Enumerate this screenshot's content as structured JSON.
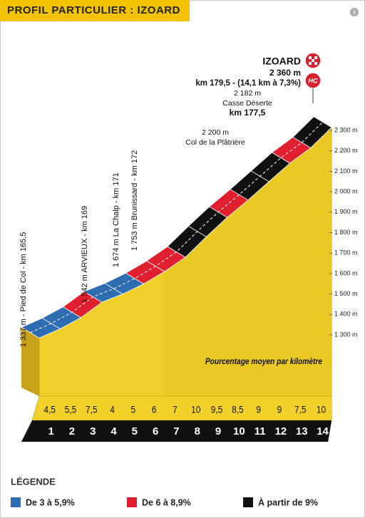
{
  "chart_data": {
    "type": "climb-profile",
    "title": "PROFIL PARTICULIER : IZOARD",
    "summit": {
      "name": "IZOARD",
      "altitude": "2 360 m",
      "detail": "km 179,5 - (14,1 km à 7,3%)",
      "category": "HC"
    },
    "annotations": [
      {
        "lines": [
          "1 337 m - Pied de Col - km 165,5"
        ]
      },
      {
        "lines": [
          "1 542 m ARVIEUX - km 169"
        ]
      },
      {
        "lines": [
          "1 674 m La Chalp - km 171"
        ]
      },
      {
        "lines": [
          "1 753 m Brunissard - km 172"
        ]
      },
      {
        "lines": [
          "2 200 m",
          "Col de la Plâtrière"
        ]
      },
      {
        "lines": [
          "2 182 m",
          "Casse Déserte",
          "km 177,5"
        ]
      }
    ],
    "start_altitude": 1337,
    "values_label": "Pourcentage moyen par kilomètre",
    "categories": [
      "1",
      "2",
      "3",
      "4",
      "5",
      "6",
      "7",
      "8",
      "9",
      "10",
      "11",
      "12",
      "13",
      "14"
    ],
    "values": [
      4.5,
      5.5,
      7.5,
      4,
      5,
      6,
      7,
      10,
      9.5,
      8.5,
      9,
      9,
      7.5,
      10
    ],
    "value_labels": [
      "4,5",
      "5,5",
      "7,5",
      "4",
      "5",
      "6",
      "7",
      "10",
      "9,5",
      "8,5",
      "9",
      "9",
      "7,5",
      "10"
    ],
    "ylim": [
      1300,
      2300
    ],
    "yticks": [
      {
        "value": 1300,
        "label": "1 300 m"
      },
      {
        "value": 1400,
        "label": "1 400 m"
      },
      {
        "value": 1500,
        "label": "1 500 m"
      },
      {
        "value": 1600,
        "label": "1 600 m"
      },
      {
        "value": 1700,
        "label": "1 700 m"
      },
      {
        "value": 1800,
        "label": "1 800 m"
      },
      {
        "value": 1900,
        "label": "1 900 m"
      },
      {
        "value": 2000,
        "label": "2 000 m"
      },
      {
        "value": 2100,
        "label": "2 100 m"
      },
      {
        "value": 2200,
        "label": "2 200 m"
      },
      {
        "value": 2300,
        "label": "2 300 m"
      }
    ],
    "legend_title": "LÉGENDE",
    "legend": [
      {
        "label": "De 3 à 5,9%",
        "min": 3,
        "color": "#2f6db3"
      },
      {
        "label": "De 6 à 8,9%",
        "min": 6,
        "color": "#e0202e"
      },
      {
        "label": "À partir de 9%",
        "min": 9,
        "color": "#111111"
      }
    ]
  }
}
